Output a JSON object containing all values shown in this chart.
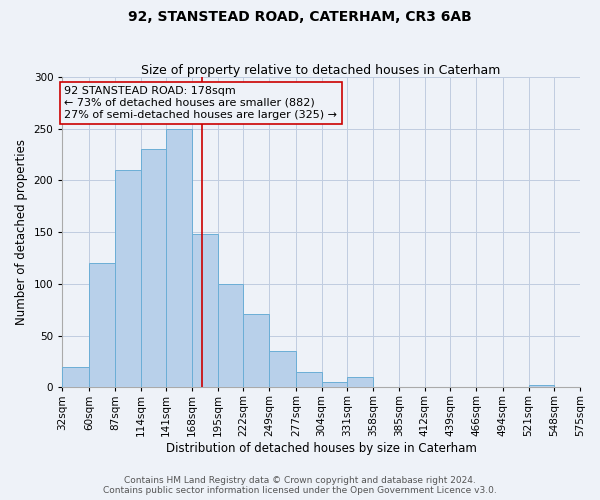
{
  "title": "92, STANSTEAD ROAD, CATERHAM, CR3 6AB",
  "subtitle": "Size of property relative to detached houses in Caterham",
  "xlabel": "Distribution of detached houses by size in Caterham",
  "ylabel": "Number of detached properties",
  "bin_edges": [
    32,
    60,
    87,
    114,
    141,
    168,
    195,
    222,
    249,
    277,
    304,
    331,
    358,
    385,
    412,
    439,
    466,
    494,
    521,
    548,
    575
  ],
  "bin_labels": [
    "32sqm",
    "60sqm",
    "87sqm",
    "114sqm",
    "141sqm",
    "168sqm",
    "195sqm",
    "222sqm",
    "249sqm",
    "277sqm",
    "304sqm",
    "331sqm",
    "358sqm",
    "385sqm",
    "412sqm",
    "439sqm",
    "466sqm",
    "494sqm",
    "521sqm",
    "548sqm",
    "575sqm"
  ],
  "counts": [
    20,
    120,
    210,
    230,
    250,
    148,
    100,
    71,
    35,
    15,
    5,
    10,
    0,
    0,
    0,
    0,
    0,
    0,
    2,
    0,
    0
  ],
  "bar_color": "#b8d0ea",
  "bar_edge_color": "#6baed6",
  "property_value": 178,
  "vline_color": "#cc0000",
  "annotation_box_color": "#cc0000",
  "annotation_text_line1": "92 STANSTEAD ROAD: 178sqm",
  "annotation_text_line2": "← 73% of detached houses are smaller (882)",
  "annotation_text_line3": "27% of semi-detached houses are larger (325) →",
  "ylim": [
    0,
    300
  ],
  "yticks": [
    0,
    50,
    100,
    150,
    200,
    250,
    300
  ],
  "footer_line1": "Contains HM Land Registry data © Crown copyright and database right 2024.",
  "footer_line2": "Contains public sector information licensed under the Open Government Licence v3.0.",
  "background_color": "#eef2f8",
  "plot_bg_color": "#eef2f8",
  "grid_color": "#c0cce0",
  "title_fontsize": 10,
  "subtitle_fontsize": 9,
  "axis_label_fontsize": 8.5,
  "tick_fontsize": 7.5,
  "annotation_fontsize": 8,
  "footer_fontsize": 6.5
}
